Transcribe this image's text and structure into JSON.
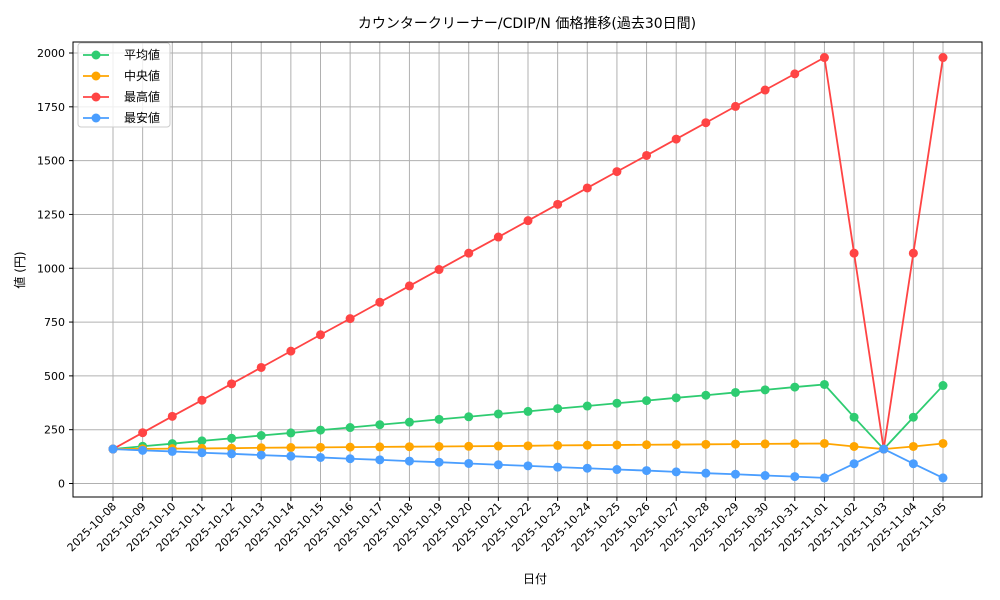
{
  "chart_data": {
    "type": "line",
    "title": "カウンタークリーナー/CDIP/N 価格推移(過去30日間)",
    "xlabel": "日付",
    "ylabel": "値 (円)",
    "ylim": [
      -60,
      2075
    ],
    "yticks": [
      0,
      250,
      500,
      750,
      1000,
      1250,
      1500,
      1750,
      2000
    ],
    "grid": true,
    "legend_position": "top-left",
    "x": [
      "2025-10-08",
      "2025-10-09",
      "2025-10-10",
      "2025-10-11",
      "2025-10-12",
      "2025-10-13",
      "2025-10-14",
      "2025-10-15",
      "2025-10-16",
      "2025-10-17",
      "2025-10-18",
      "2025-10-19",
      "2025-10-20",
      "2025-10-21",
      "2025-10-22",
      "2025-10-23",
      "2025-10-24",
      "2025-10-25",
      "2025-10-26",
      "2025-10-27",
      "2025-10-28",
      "2025-10-29",
      "2025-10-30",
      "2025-10-31",
      "2025-11-01",
      "2025-11-02",
      "2025-11-03",
      "2025-11-04",
      "2025-11-05"
    ],
    "series": [
      {
        "name": "平均値",
        "color": "#2ecc71",
        "values": [
          160,
          173,
          185,
          198,
          210,
          223,
          235,
          248,
          260,
          273,
          285,
          298,
          310,
          323,
          335,
          348,
          360,
          373,
          385,
          398,
          410,
          423,
          435,
          448,
          460,
          308,
          160,
          308,
          455
        ]
      },
      {
        "name": "中央値",
        "color": "#ffa500",
        "values": [
          160,
          161,
          162,
          163,
          164,
          166,
          167,
          168,
          169,
          170,
          171,
          172,
          173,
          174,
          175,
          177,
          178,
          179,
          180,
          181,
          182,
          183,
          184,
          185,
          186,
          172,
          160,
          172,
          186
        ]
      },
      {
        "name": "最高値",
        "color": "#ff4444",
        "values": [
          160,
          236,
          312,
          387,
          463,
          539,
          615,
          691,
          766,
          842,
          918,
          994,
          1070,
          1145,
          1221,
          1297,
          1373,
          1449,
          1524,
          1600,
          1676,
          1752,
          1828,
          1903,
          1979,
          1070,
          160,
          1070,
          1979
        ]
      },
      {
        "name": "最安値",
        "color": "#4a9eff",
        "values": [
          160,
          154,
          149,
          143,
          138,
          132,
          127,
          121,
          115,
          110,
          104,
          99,
          93,
          87,
          82,
          76,
          71,
          65,
          60,
          54,
          48,
          43,
          37,
          32,
          26,
          92,
          160,
          92,
          26
        ]
      }
    ]
  }
}
